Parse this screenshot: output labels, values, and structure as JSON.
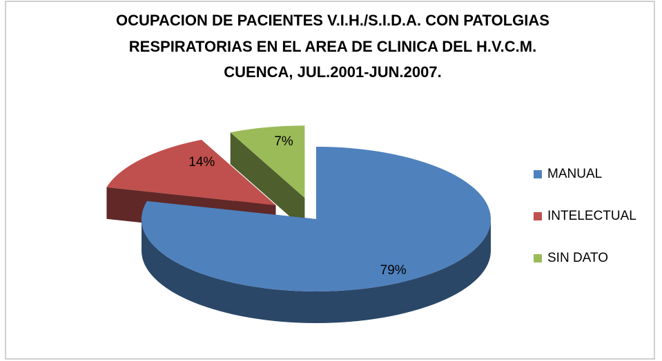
{
  "chart_data": {
    "type": "pie",
    "title": [
      "OCUPACION DE PACIENTES  V.I.H./S.I.D.A. CON PATOLGIAS",
      "RESPIRATORIAS EN EL AREA DE CLINICA DEL H.V.C.M.",
      "CUENCA, JUL.2001-JUN.2007."
    ],
    "categories": [
      "MANUAL",
      "INTELECTUAL",
      "SIN DATO"
    ],
    "values": [
      79,
      14,
      7
    ],
    "value_labels": [
      "79%",
      "14%",
      "7%"
    ],
    "colors": [
      "#4f81bd",
      "#c0504d",
      "#9bbb59"
    ],
    "exploded": [
      false,
      true,
      true
    ],
    "legend": "right"
  }
}
